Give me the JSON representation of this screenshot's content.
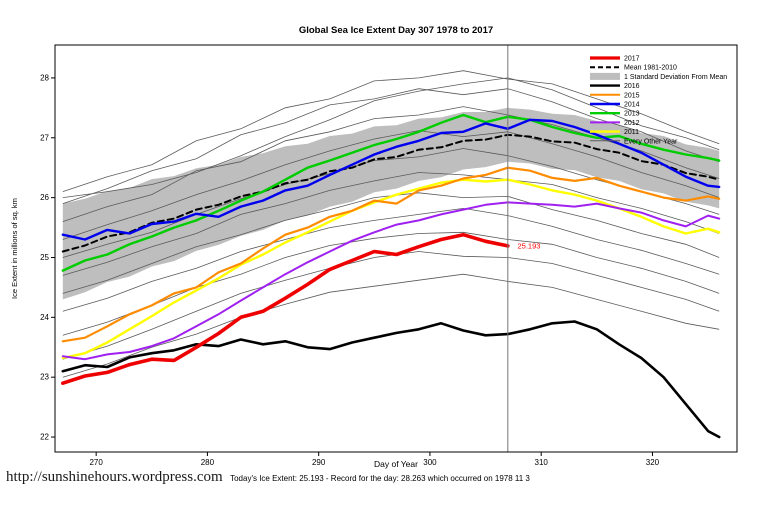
{
  "page": {
    "title": "Global Sea Ice Extent Day 307 1978 to 2017",
    "watermark": "http://sunshinehours.wordpress.com",
    "footer": "Today's Ice Extent: 25.193 - Record for the day: 28.263 which occurred on 1978 11 3"
  },
  "chart_data": {
    "type": "line",
    "title": "Global Sea Ice Extent Day 307 1978 to 2017",
    "xlabel": "Day of Year",
    "ylabel": "Ice Extent in millions of sq. km",
    "xlim": [
      266.3,
      327.6
    ],
    "ylim": [
      21.75,
      28.55
    ],
    "xticks": [
      270,
      280,
      290,
      300,
      310,
      320
    ],
    "yticks": [
      22,
      23,
      24,
      25,
      26,
      27,
      28
    ],
    "grid": false,
    "legend_position": "top-right",
    "vline_x": 307,
    "annotation": {
      "text": "25.193",
      "x": 307.6,
      "y": 25.19,
      "color": "#FF0000"
    },
    "x": [
      267,
      269,
      271,
      273,
      275,
      277,
      279,
      281,
      283,
      285,
      287,
      289,
      291,
      293,
      295,
      297,
      299,
      301,
      303,
      305,
      307,
      309,
      311,
      313,
      315,
      317,
      319,
      321,
      323,
      325,
      326
    ],
    "band": {
      "name": "1 Standard Deviation From Mean",
      "color": "#BEBEBE",
      "upper": [
        25.9,
        25.98,
        26.11,
        26.16,
        26.31,
        26.36,
        26.49,
        26.55,
        26.68,
        26.74,
        26.86,
        26.9,
        27.03,
        27.07,
        27.19,
        27.21,
        27.32,
        27.34,
        27.43,
        27.43,
        27.5,
        27.47,
        27.4,
        27.38,
        27.28,
        27.22,
        27.08,
        27.03,
        26.89,
        26.83,
        26.78
      ],
      "lower": [
        24.3,
        24.42,
        24.59,
        24.68,
        24.85,
        24.94,
        25.11,
        25.21,
        25.36,
        25.46,
        25.62,
        25.7,
        25.85,
        25.93,
        26.09,
        26.15,
        26.28,
        26.34,
        26.47,
        26.51,
        26.6,
        26.57,
        26.48,
        26.46,
        26.34,
        26.28,
        26.14,
        26.07,
        25.93,
        25.87,
        25.82
      ]
    },
    "series": [
      {
        "name": "Mean 1981-2010",
        "color": "#000000",
        "width": 2,
        "dash": "6,4",
        "values": [
          25.1,
          25.2,
          25.35,
          25.42,
          25.58,
          25.65,
          25.8,
          25.88,
          26.02,
          26.1,
          26.24,
          26.3,
          26.44,
          26.5,
          26.64,
          26.68,
          26.8,
          26.84,
          26.95,
          26.97,
          27.05,
          27.02,
          26.94,
          26.92,
          26.81,
          26.75,
          26.61,
          26.55,
          26.41,
          26.35,
          26.3
        ]
      },
      {
        "name": "2011",
        "color": "#FFFF00",
        "width": 2.4,
        "values": [
          23.32,
          23.4,
          23.58,
          23.8,
          24.02,
          24.25,
          24.45,
          24.65,
          24.88,
          25.05,
          25.25,
          25.42,
          25.6,
          25.78,
          25.92,
          26.05,
          26.15,
          26.25,
          26.3,
          26.27,
          26.3,
          26.22,
          26.12,
          26.05,
          25.95,
          25.82,
          25.68,
          25.52,
          25.4,
          25.48,
          25.42
        ]
      },
      {
        "name": "2012",
        "color": "#A020F0",
        "width": 2,
        "values": [
          23.35,
          23.3,
          23.38,
          23.42,
          23.52,
          23.65,
          23.85,
          24.05,
          24.28,
          24.5,
          24.72,
          24.92,
          25.1,
          25.28,
          25.42,
          25.55,
          25.62,
          25.72,
          25.8,
          25.88,
          25.92,
          25.9,
          25.88,
          25.85,
          25.9,
          25.82,
          25.75,
          25.62,
          25.52,
          25.7,
          25.65
        ]
      },
      {
        "name": "2015",
        "color": "#FF8C00",
        "width": 2.2,
        "values": [
          23.6,
          23.66,
          23.85,
          24.05,
          24.2,
          24.4,
          24.5,
          24.75,
          24.9,
          25.15,
          25.38,
          25.5,
          25.68,
          25.78,
          25.95,
          25.9,
          26.12,
          26.2,
          26.32,
          26.38,
          26.5,
          26.45,
          26.33,
          26.28,
          26.33,
          26.2,
          26.1,
          26.0,
          25.95,
          26.02,
          25.98
        ]
      },
      {
        "name": "2013",
        "color": "#00CD00",
        "width": 2.4,
        "values": [
          24.78,
          24.95,
          25.05,
          25.22,
          25.35,
          25.5,
          25.62,
          25.78,
          25.95,
          26.1,
          26.3,
          26.5,
          26.62,
          26.75,
          26.88,
          26.98,
          27.1,
          27.25,
          27.38,
          27.26,
          27.35,
          27.3,
          27.18,
          27.08,
          27.0,
          27.03,
          26.9,
          26.8,
          26.72,
          26.66,
          26.62
        ]
      },
      {
        "name": "2014",
        "color": "#0000EE",
        "width": 2.4,
        "values": [
          25.38,
          25.3,
          25.46,
          25.4,
          25.56,
          25.6,
          25.73,
          25.68,
          25.85,
          25.95,
          26.12,
          26.2,
          26.38,
          26.55,
          26.72,
          26.85,
          26.95,
          27.08,
          27.1,
          27.24,
          27.15,
          27.3,
          27.28,
          27.18,
          27.05,
          26.9,
          26.75,
          26.55,
          26.35,
          26.2,
          26.18
        ]
      },
      {
        "name": "2016",
        "color": "#000000",
        "width": 2.6,
        "values": [
          23.1,
          23.2,
          23.17,
          23.33,
          23.4,
          23.45,
          23.55,
          23.52,
          23.63,
          23.55,
          23.6,
          23.5,
          23.47,
          23.58,
          23.66,
          23.74,
          23.8,
          23.9,
          23.78,
          23.7,
          23.72,
          23.8,
          23.9,
          23.93,
          23.8,
          23.55,
          23.32,
          23.0,
          22.55,
          22.1,
          22.0
        ]
      },
      {
        "name": "2017",
        "color": "#EE0000",
        "width": 3.6,
        "values": [
          22.9,
          23.02,
          23.08,
          23.21,
          23.3,
          23.28,
          23.5,
          23.73,
          24.0,
          24.1,
          24.32,
          24.55,
          24.8,
          24.95,
          25.1,
          25.05,
          25.18,
          25.3,
          25.38,
          25.27,
          25.193,
          null,
          null,
          null,
          null,
          null,
          null,
          null,
          null,
          null,
          null
        ]
      }
    ],
    "background": {
      "name": "Every Other Year",
      "color": "#5a5a5a",
      "width": 0.8,
      "x": [
        267,
        271,
        275,
        279,
        283,
        287,
        291,
        295,
        299,
        303,
        307,
        311,
        315,
        319,
        323,
        326
      ],
      "series": [
        [
          26.1,
          26.35,
          26.55,
          26.95,
          27.15,
          27.5,
          27.65,
          27.95,
          28.0,
          28.12,
          27.98,
          27.9,
          27.65,
          27.4,
          27.1,
          26.9
        ],
        [
          25.9,
          26.15,
          26.45,
          26.65,
          27.05,
          27.25,
          27.55,
          27.65,
          27.82,
          27.72,
          27.82,
          27.6,
          27.32,
          27.1,
          26.78,
          26.6
        ],
        [
          25.6,
          25.85,
          26.05,
          26.45,
          26.6,
          26.95,
          27.1,
          27.32,
          27.38,
          27.52,
          27.38,
          27.22,
          27.0,
          26.78,
          26.5,
          26.32
        ],
        [
          25.3,
          25.55,
          25.78,
          26.05,
          26.28,
          26.55,
          26.78,
          26.98,
          27.12,
          27.02,
          27.1,
          26.9,
          26.68,
          26.42,
          26.2,
          26.0
        ],
        [
          25.0,
          25.22,
          25.42,
          25.72,
          25.98,
          26.22,
          26.4,
          26.62,
          26.68,
          26.82,
          26.7,
          26.52,
          26.3,
          26.1,
          25.9,
          25.72
        ],
        [
          24.7,
          24.92,
          25.18,
          25.4,
          25.72,
          25.9,
          26.12,
          26.28,
          26.42,
          26.38,
          26.3,
          26.22,
          26.0,
          25.82,
          25.6,
          25.4
        ],
        [
          24.4,
          24.62,
          24.9,
          25.18,
          25.38,
          25.62,
          25.8,
          26.0,
          26.08,
          26.0,
          26.02,
          25.8,
          25.62,
          25.4,
          25.22,
          25.0
        ],
        [
          24.1,
          24.32,
          24.6,
          24.82,
          25.1,
          25.3,
          25.5,
          25.62,
          25.72,
          25.82,
          25.7,
          25.52,
          25.3,
          25.12,
          24.9,
          24.72
        ],
        [
          23.7,
          23.92,
          24.2,
          24.5,
          24.72,
          25.0,
          25.2,
          25.32,
          25.4,
          25.42,
          25.3,
          25.22,
          25.0,
          24.82,
          24.6,
          24.4
        ],
        [
          23.3,
          23.52,
          23.8,
          24.1,
          24.4,
          24.62,
          24.82,
          25.0,
          25.1,
          25.02,
          25.0,
          24.9,
          24.7,
          24.5,
          24.3,
          24.1
        ],
        [
          23.0,
          23.22,
          23.5,
          23.72,
          24.0,
          24.22,
          24.42,
          24.52,
          24.62,
          24.72,
          24.6,
          24.5,
          24.3,
          24.1,
          23.9,
          23.8
        ],
        [
          26.0,
          26.1,
          26.22,
          26.42,
          26.7,
          27.02,
          27.3,
          27.62,
          27.78,
          27.9,
          28.0,
          27.8,
          27.5,
          27.2,
          27.0,
          26.8
        ]
      ]
    },
    "legend": [
      {
        "label": "2017",
        "color": "#EE0000",
        "type": "line",
        "width": 3.2
      },
      {
        "label": "Mean 1981-2010",
        "color": "#000000",
        "type": "line",
        "width": 2,
        "dash": "5,3"
      },
      {
        "label": "1 Standard Deviation From Mean",
        "color": "#BEBEBE",
        "type": "box"
      },
      {
        "label": "2016",
        "color": "#000000",
        "type": "line",
        "width": 2.4
      },
      {
        "label": "2015",
        "color": "#FF8C00",
        "type": "line",
        "width": 2
      },
      {
        "label": "2014",
        "color": "#0000EE",
        "type": "line",
        "width": 2.4
      },
      {
        "label": "2013",
        "color": "#00CD00",
        "type": "line",
        "width": 2.4
      },
      {
        "label": "2012",
        "color": "#A020F0",
        "type": "line",
        "width": 2
      },
      {
        "label": "2011",
        "color": "#FFFF00",
        "type": "line",
        "width": 2.4
      },
      {
        "label": "Every Other Year",
        "color": "#5a5a5a",
        "type": "line",
        "width": 1
      }
    ]
  }
}
